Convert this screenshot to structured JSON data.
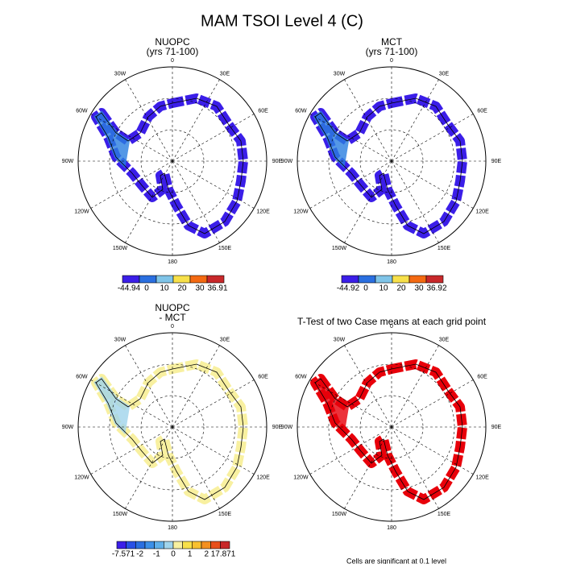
{
  "title": "MAM TSOI Level 4 (C)",
  "longitude_labels": [
    "0",
    "30E",
    "60E",
    "90E",
    "120E",
    "150E",
    "180",
    "150W",
    "120W",
    "90W",
    "60W",
    "30W"
  ],
  "panels": [
    {
      "title": [
        "NUOPC",
        "(yrs 71-100)"
      ],
      "map_color": "#3b1ee8",
      "accent_color": "#2a7fe0",
      "colorbar": {
        "colors": [
          "#3b1ee8",
          "#2a6fe0",
          "#7fc4e8",
          "#f7e04a",
          "#f46a12",
          "#c8282a"
        ],
        "labels": [
          "-44.94",
          "0",
          "10",
          "20",
          "30",
          "36.91"
        ]
      }
    },
    {
      "title": [
        "MCT",
        "(yrs 71-100)"
      ],
      "map_color": "#3b1ee8",
      "accent_color": "#2a7fe0",
      "colorbar": {
        "colors": [
          "#3b1ee8",
          "#2a6fe0",
          "#7fc4e8",
          "#f7e04a",
          "#f46a12",
          "#c8282a"
        ],
        "labels": [
          "-44.92",
          "0",
          "10",
          "20",
          "30",
          "36.92"
        ]
      }
    },
    {
      "title": [
        "NUOPC",
        "- MCT"
      ],
      "map_color": "#f8f0a0",
      "accent_color": "#a0d4ec",
      "colorbar": {
        "colors": [
          "#3b1ee8",
          "#2850e6",
          "#2a6fe0",
          "#3c90e8",
          "#60b0ea",
          "#a0d4ec",
          "#f8f0a0",
          "#f7e04a",
          "#f8c030",
          "#f49020",
          "#e8501a",
          "#c8282a"
        ],
        "labels": [
          "-7.571",
          "-2",
          "-1",
          "0",
          "1",
          "2",
          "17.871"
        ]
      }
    },
    {
      "title": [
        "T-Test of two Case means at each grid point"
      ],
      "map_color": "#e8000a",
      "accent_color": "#e8000a"
    }
  ],
  "footnote": "Cells are significant at 0.1 level"
}
